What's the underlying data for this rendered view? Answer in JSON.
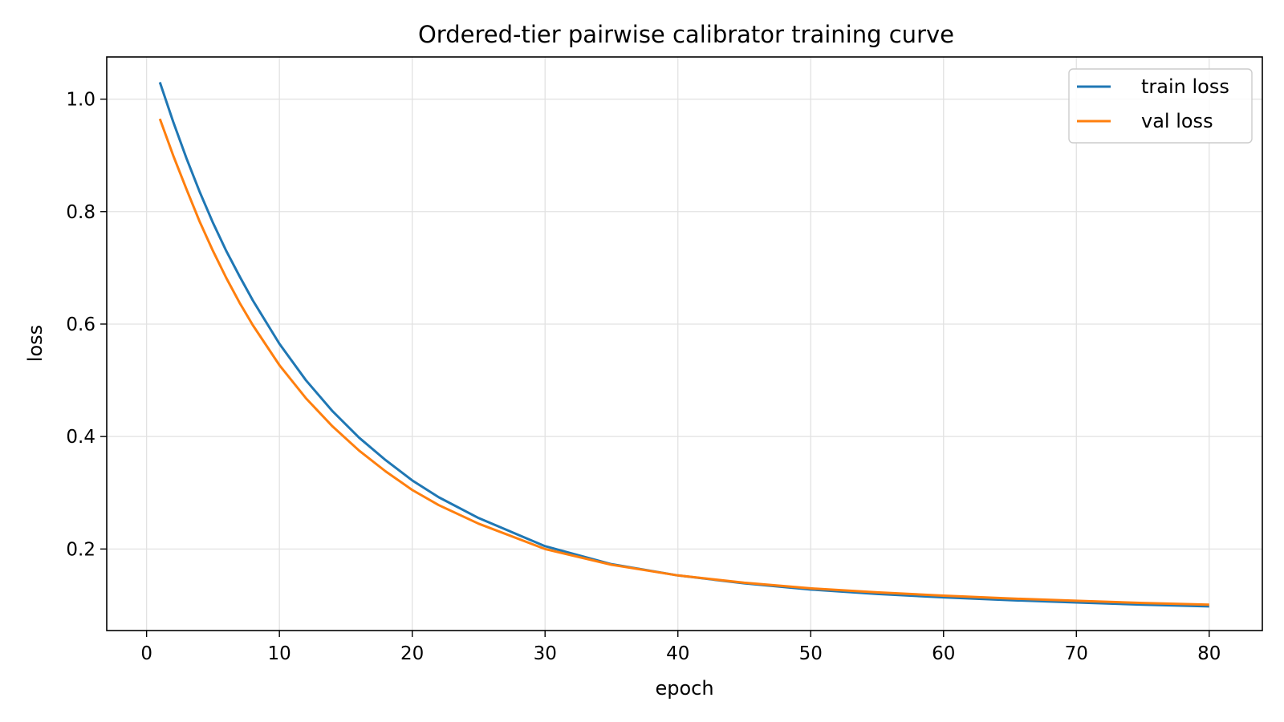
{
  "chart_data": {
    "type": "line",
    "title": "Ordered-tier pairwise calibrator training curve",
    "xlabel": "epoch",
    "ylabel": "loss",
    "xlim": [
      -3,
      84
    ],
    "ylim": [
      0.055,
      1.075
    ],
    "xticks": [
      0,
      10,
      20,
      30,
      40,
      50,
      60,
      70,
      80
    ],
    "yticks": [
      0.2,
      0.4,
      0.6,
      0.8,
      1.0
    ],
    "grid": true,
    "legend_position": "top-right",
    "series": [
      {
        "name": "train loss",
        "color": "#1f77b4",
        "x": [
          1,
          2,
          3,
          4,
          5,
          6,
          7,
          8,
          10,
          12,
          14,
          16,
          18,
          20,
          22,
          25,
          30,
          35,
          40,
          45,
          50,
          55,
          60,
          65,
          70,
          75,
          80
        ],
        "y": [
          1.03,
          0.96,
          0.895,
          0.835,
          0.78,
          0.73,
          0.685,
          0.642,
          0.565,
          0.5,
          0.445,
          0.398,
          0.358,
          0.322,
          0.292,
          0.255,
          0.205,
          0.173,
          0.153,
          0.139,
          0.128,
          0.12,
          0.114,
          0.109,
          0.105,
          0.101,
          0.098
        ]
      },
      {
        "name": "val loss",
        "color": "#ff7f0e",
        "x": [
          1,
          2,
          3,
          4,
          5,
          6,
          7,
          8,
          10,
          12,
          14,
          16,
          18,
          20,
          22,
          25,
          30,
          35,
          40,
          45,
          50,
          55,
          60,
          65,
          70,
          75,
          80
        ],
        "y": [
          0.965,
          0.9,
          0.84,
          0.782,
          0.73,
          0.682,
          0.638,
          0.598,
          0.527,
          0.468,
          0.418,
          0.375,
          0.338,
          0.305,
          0.278,
          0.245,
          0.2,
          0.172,
          0.153,
          0.14,
          0.13,
          0.123,
          0.117,
          0.112,
          0.108,
          0.104,
          0.101
        ]
      }
    ]
  }
}
